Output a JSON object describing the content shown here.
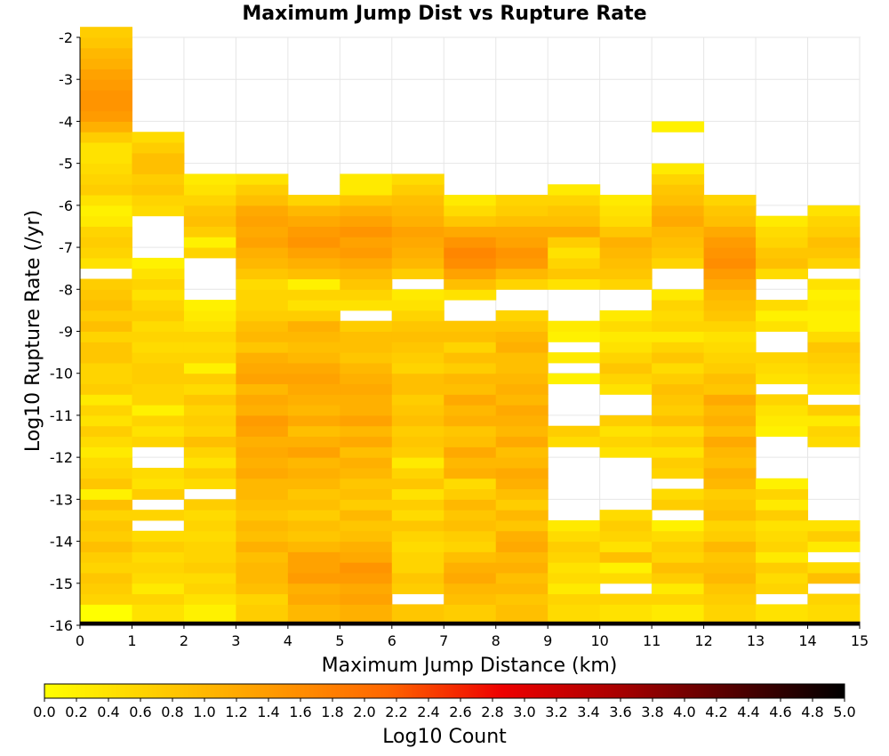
{
  "chart_data": {
    "type": "heatmap",
    "title": "Maximum Jump Dist vs Rupture Rate",
    "xlabel": "Maximum Jump Distance (km)",
    "ylabel": "Log10 Rupture Rate (/yr)",
    "xlim": [
      0,
      15
    ],
    "ylim": [
      -16,
      -2
    ],
    "x_ticks": [
      "0",
      "1",
      "2",
      "3",
      "4",
      "5",
      "6",
      "7",
      "8",
      "9",
      "10",
      "11",
      "12",
      "13",
      "14",
      "15"
    ],
    "y_ticks": [
      "-2",
      "-3",
      "-4",
      "-5",
      "-6",
      "-7",
      "-8",
      "-9",
      "-10",
      "-11",
      "-12",
      "-13",
      "-14",
      "-15",
      "-16"
    ],
    "bin_size_y": 0.25,
    "colorbar": {
      "label": "Log10 Count",
      "range": [
        0,
        5
      ],
      "ticks": [
        "0.0",
        "0.2",
        "0.4",
        "0.6",
        "0.8",
        "1.0",
        "1.2",
        "1.4",
        "1.6",
        "1.8",
        "2.0",
        "2.2",
        "2.4",
        "2.6",
        "2.8",
        "3.0",
        "3.2",
        "3.4",
        "3.6",
        "3.8",
        "4.0",
        "4.2",
        "4.4",
        "4.6",
        "4.8",
        "5.0"
      ],
      "colors": [
        "#ffff00",
        "#ffcc00",
        "#ff9900",
        "#ff6600",
        "#ee0000",
        "#aa0000",
        "#550000",
        "#000000"
      ]
    },
    "columns": [
      {
        "x": 0.5,
        "y_from": -16,
        "values": [
          4.9,
          0.0,
          0.6,
          0.7,
          0.8,
          0.6,
          0.7,
          0.9,
          0.7,
          0.8,
          0.6,
          0.9,
          0.2,
          0.8,
          0.6,
          0.5,
          0.3,
          0.5,
          0.7,
          0.4,
          0.6,
          0.3,
          0.7,
          0.6,
          0.6,
          0.8,
          0.8,
          0.6,
          0.9,
          0.7,
          0.9,
          0.8,
          0.7,
          null,
          0.4,
          0.6,
          0.7,
          0.6,
          0.3,
          0.2,
          0.4,
          0.7,
          0.6,
          0.5,
          0.4,
          0.4,
          0.7,
          1.1,
          1.4,
          1.5,
          1.5,
          1.4,
          1.3,
          1.1,
          1.0,
          0.8,
          0.7
        ]
      },
      {
        "x": 1.5,
        "y_from": -16,
        "values": [
          4.9,
          0.4,
          0.6,
          0.3,
          0.5,
          0.6,
          0.5,
          0.7,
          0.5,
          null,
          0.6,
          null,
          0.7,
          0.4,
          0.5,
          null,
          null,
          0.6,
          0.4,
          0.6,
          0.2,
          0.6,
          0.6,
          0.7,
          0.7,
          0.6,
          0.5,
          0.6,
          0.5,
          0.7,
          0.6,
          0.4,
          0.6,
          0.4,
          0.2,
          null,
          null,
          null,
          null,
          0.5,
          0.6,
          0.8,
          0.7,
          0.9,
          0.9,
          0.7,
          0.5
        ]
      },
      {
        "x": 2.5,
        "y_from": -16,
        "values": [
          4.9,
          0.2,
          0.4,
          0.6,
          0.5,
          0.7,
          0.6,
          0.6,
          0.5,
          0.6,
          0.5,
          0.7,
          null,
          0.5,
          0.7,
          0.4,
          0.6,
          0.9,
          0.6,
          0.7,
          0.6,
          0.8,
          0.5,
          0.7,
          0.2,
          0.6,
          0.5,
          0.6,
          0.4,
          0.3,
          0.2,
          null,
          null,
          null,
          null,
          0.6,
          0.2,
          0.7,
          0.9,
          0.8,
          0.6,
          0.4,
          0.3
        ]
      },
      {
        "x": 3.5,
        "y_from": -16,
        "values": [
          4.9,
          0.7,
          0.6,
          0.9,
          1.0,
          1.0,
          0.9,
          1.1,
          0.9,
          1.0,
          0.8,
          0.9,
          1.0,
          1.0,
          1.2,
          1.1,
          1.2,
          1.1,
          1.3,
          1.4,
          1.1,
          1.2,
          1.0,
          1.3,
          1.2,
          1.1,
          0.8,
          1.0,
          0.9,
          0.7,
          0.6,
          0.6,
          0.5,
          0.8,
          1.0,
          1.1,
          1.3,
          1.2,
          1.3,
          1.2,
          0.9,
          0.7,
          0.4
        ]
      },
      {
        "x": 4.5,
        "y_from": -16,
        "values": [
          4.9,
          1.0,
          1.2,
          1.1,
          1.4,
          1.3,
          1.3,
          1.0,
          0.8,
          0.9,
          0.7,
          0.9,
          0.8,
          1.0,
          1.1,
          1.0,
          1.3,
          1.1,
          0.9,
          1.2,
          1.0,
          1.1,
          1.2,
          1.3,
          1.2,
          1.0,
          0.9,
          1.0,
          1.1,
          0.7,
          0.4,
          0.6,
          0.2,
          0.9,
          1.1,
          1.3,
          1.5,
          1.4,
          1.2,
          1.0,
          0.6
        ]
      },
      {
        "x": 5.5,
        "y_from": -16,
        "values": [
          4.9,
          1.1,
          1.3,
          1.2,
          1.4,
          1.5,
          1.2,
          1.1,
          0.9,
          0.8,
          1.0,
          0.7,
          0.9,
          0.8,
          1.0,
          1.1,
          0.9,
          1.2,
          1.0,
          1.3,
          1.1,
          1.1,
          1.2,
          1.1,
          1.0,
          0.8,
          0.9,
          0.9,
          0.7,
          null,
          0.4,
          0.6,
          0.8,
          1.0,
          1.2,
          1.4,
          1.3,
          1.5,
          1.3,
          1.1,
          0.8,
          0.3,
          0.3
        ]
      },
      {
        "x": 6.5,
        "y_from": -16,
        "values": [
          4.9,
          0.8,
          null,
          0.7,
          0.8,
          0.6,
          0.6,
          0.5,
          0.6,
          0.8,
          0.5,
          0.7,
          0.4,
          0.8,
          0.6,
          0.3,
          0.7,
          0.8,
          0.7,
          0.9,
          0.8,
          0.7,
          0.9,
          0.9,
          0.6,
          0.7,
          0.8,
          0.9,
          0.8,
          0.6,
          0.4,
          0.3,
          null,
          0.7,
          1.0,
          1.1,
          1.2,
          1.3,
          1.1,
          1.0,
          0.9,
          0.7,
          0.5
        ]
      },
      {
        "x": 7.5,
        "y_from": -16,
        "values": [
          4.9,
          0.7,
          0.9,
          1.0,
          1.2,
          1.1,
          0.9,
          0.6,
          0.7,
          0.9,
          0.8,
          1.0,
          0.7,
          0.5,
          1.1,
          1.0,
          1.2,
          0.9,
          0.8,
          1.1,
          1.0,
          1.2,
          0.9,
          1.0,
          0.7,
          0.9,
          0.6,
          0.9,
          0.8,
          null,
          null,
          0.4,
          0.9,
          1.3,
          1.6,
          1.7,
          1.5,
          1.2,
          0.8,
          0.5,
          0.3
        ]
      },
      {
        "x": 8.5,
        "y_from": -16,
        "values": [
          4.9,
          0.9,
          0.8,
          1.0,
          0.9,
          1.1,
          1.0,
          1.2,
          1.1,
          0.8,
          1.0,
          0.7,
          0.9,
          1.1,
          1.2,
          1.0,
          0.9,
          1.2,
          1.0,
          1.1,
          1.2,
          1.0,
          1.1,
          1.0,
          0.9,
          0.9,
          1.1,
          1.0,
          0.8,
          0.6,
          null,
          null,
          0.6,
          1.0,
          1.4,
          1.5,
          1.3,
          1.2,
          0.9,
          0.7,
          0.6
        ]
      },
      {
        "x": 9.5,
        "y_from": -16,
        "values": [
          4.9,
          0.5,
          0.6,
          0.3,
          0.5,
          0.4,
          0.6,
          0.7,
          0.5,
          0.3,
          null,
          null,
          null,
          null,
          null,
          null,
          null,
          0.5,
          0.7,
          null,
          null,
          null,
          null,
          0.2,
          null,
          0.3,
          null,
          0.2,
          0.3,
          null,
          null,
          null,
          0.4,
          0.8,
          0.6,
          0.4,
          0.7,
          1.2,
          0.9,
          0.8,
          0.6,
          0.3
        ]
      },
      {
        "x": 10.5,
        "y_from": -16,
        "values": [
          4.9,
          0.4,
          0.6,
          null,
          0.5,
          0.2,
          0.9,
          0.4,
          0.6,
          0.7,
          0.5,
          null,
          null,
          null,
          null,
          null,
          0.4,
          0.6,
          0.4,
          0.7,
          null,
          null,
          0.4,
          0.6,
          0.8,
          0.6,
          0.4,
          0.3,
          0.5,
          0.3,
          null,
          null,
          0.6,
          0.8,
          0.9,
          1.0,
          1.1,
          0.8,
          0.5,
          0.4,
          0.3
        ]
      },
      {
        "x": 11.5,
        "y_from": -16,
        "values": [
          4.9,
          0.3,
          0.6,
          0.3,
          0.7,
          0.9,
          0.6,
          0.7,
          0.5,
          0.2,
          null,
          0.7,
          0.5,
          null,
          0.6,
          0.7,
          0.4,
          0.7,
          0.5,
          0.9,
          0.7,
          0.8,
          0.9,
          0.7,
          0.5,
          0.8,
          0.6,
          0.3,
          0.6,
          0.5,
          0.6,
          0.3,
          null,
          null,
          0.6,
          0.8,
          0.9,
          1.0,
          1.2,
          1.1,
          0.9,
          0.8,
          0.6,
          0.3,
          null,
          null,
          null,
          0.2
        ]
      },
      {
        "x": 12.5,
        "y_from": -16,
        "values": [
          4.9,
          0.6,
          0.7,
          0.8,
          1.0,
          0.9,
          0.8,
          1.0,
          0.7,
          0.6,
          0.9,
          0.8,
          0.7,
          1.0,
          1.1,
          0.9,
          1.0,
          1.2,
          0.9,
          1.1,
          1.0,
          1.2,
          0.8,
          0.9,
          0.7,
          0.6,
          0.5,
          0.4,
          0.6,
          0.8,
          0.9,
          1.0,
          1.2,
          1.4,
          1.6,
          1.5,
          1.4,
          1.2,
          0.9,
          0.8,
          0.6
        ]
      },
      {
        "x": 13.5,
        "y_from": -16,
        "values": [
          4.9,
          0.4,
          null,
          0.6,
          0.5,
          0.7,
          0.3,
          0.6,
          0.5,
          0.4,
          0.7,
          0.3,
          0.6,
          0.2,
          null,
          null,
          null,
          null,
          0.2,
          0.3,
          0.4,
          0.6,
          null,
          0.4,
          0.5,
          0.6,
          null,
          null,
          0.4,
          0.2,
          0.5,
          null,
          null,
          0.5,
          0.9,
          0.8,
          0.6,
          0.5,
          0.3
        ]
      },
      {
        "x": 14.5,
        "y_from": -16,
        "values": [
          4.9,
          0.5,
          0.6,
          null,
          0.9,
          0.5,
          null,
          0.3,
          0.7,
          0.4,
          null,
          null,
          null,
          null,
          null,
          null,
          null,
          0.5,
          0.6,
          0.3,
          0.7,
          null,
          0.4,
          0.5,
          0.6,
          0.7,
          0.8,
          0.5,
          0.2,
          0.2,
          0.3,
          0.2,
          0.4,
          null,
          0.6,
          0.8,
          0.9,
          0.7,
          0.6,
          0.4
        ]
      }
    ]
  }
}
